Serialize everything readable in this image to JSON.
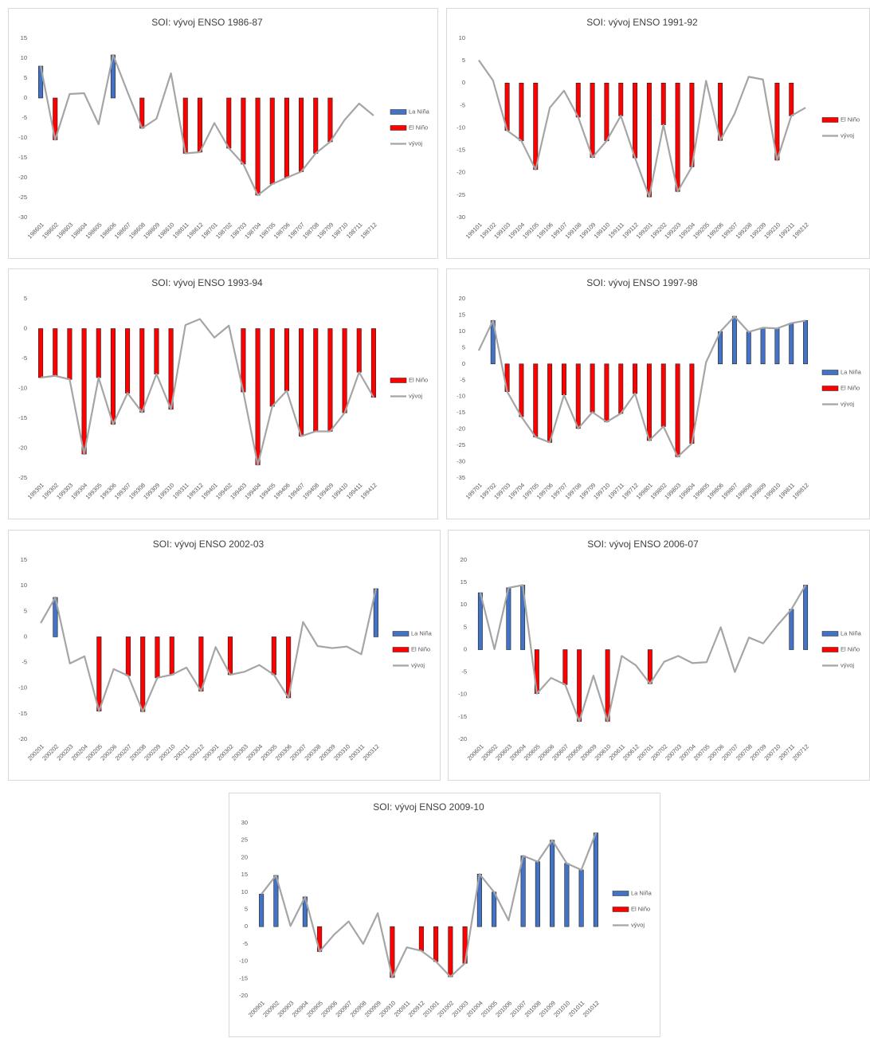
{
  "chart_data": [
    {
      "type": "bar",
      "title": "SOI: vývoj ENSO 1986-87",
      "legend": "right",
      "grid": false,
      "categories": [
        "198601",
        "198602",
        "198603",
        "198604",
        "198605",
        "198606",
        "198607",
        "198608",
        "198609",
        "198610",
        "198611",
        "198612",
        "198701",
        "198702",
        "198703",
        "198704",
        "198705",
        "198706",
        "198707",
        "198708",
        "198709",
        "198710",
        "198711",
        "198712"
      ],
      "ylim": [
        -30,
        15
      ],
      "yticks": [
        -30,
        -25,
        -20,
        -15,
        -10,
        -5,
        0,
        5,
        10,
        15
      ],
      "series": [
        {
          "name": "La Niña",
          "type": "bar",
          "color": "#4472c4",
          "values": [
            8,
            null,
            null,
            null,
            null,
            10.8,
            null,
            null,
            null,
            null,
            null,
            null,
            null,
            null,
            null,
            null,
            null,
            null,
            null,
            null,
            null,
            null,
            null,
            null
          ]
        },
        {
          "name": "El Niño",
          "type": "bar",
          "color": "#ff0000",
          "values": [
            null,
            -10.5,
            null,
            null,
            null,
            null,
            null,
            -7.6,
            null,
            null,
            -13.9,
            -13.6,
            null,
            -12.6,
            -16.6,
            -24.4,
            -21.6,
            -20,
            -18.5,
            -13.9,
            -11,
            null,
            null,
            null
          ]
        },
        {
          "name": "vývoj",
          "type": "line",
          "color": "#a5a5a5",
          "values": [
            8,
            -10.5,
            1,
            1.2,
            -6.6,
            10.8,
            1.5,
            -7.6,
            -5.2,
            6.2,
            -13.9,
            -13.6,
            -6.3,
            -12.6,
            -16.6,
            -24.4,
            -21.6,
            -20,
            -18.5,
            -13.9,
            -11,
            -5.5,
            -1.4,
            -4.4
          ]
        }
      ]
    },
    {
      "type": "bar",
      "title": "SOI: vývoj ENSO 1991-92",
      "legend": "right",
      "grid": false,
      "categories": [
        "199101",
        "199102",
        "199103",
        "199104",
        "199105",
        "199106",
        "199107",
        "199108",
        "199109",
        "199110",
        "199111",
        "199112",
        "199201",
        "199202",
        "199203",
        "199204",
        "199205",
        "199206",
        "199207",
        "199208",
        "199209",
        "199210",
        "199211",
        "199212"
      ],
      "ylim": [
        -30,
        10
      ],
      "yticks": [
        -30,
        -25,
        -20,
        -15,
        -10,
        -5,
        0,
        5,
        10
      ],
      "series": [
        {
          "name": "El Niño",
          "type": "bar",
          "color": "#ff0000",
          "values": [
            null,
            null,
            -10.6,
            -12.9,
            -19.3,
            null,
            null,
            -7.6,
            -16.6,
            -12.9,
            -7.3,
            -16.7,
            -25.4,
            -9.3,
            -24.2,
            -18.7,
            null,
            -12.8,
            null,
            null,
            null,
            -17.2,
            -7.3,
            null
          ]
        },
        {
          "name": "vývoj",
          "type": "line",
          "color": "#a5a5a5",
          "values": [
            5.1,
            0.6,
            -10.6,
            -12.9,
            -19.3,
            -5.5,
            -1.7,
            -7.6,
            -16.6,
            -12.9,
            -7.3,
            -16.7,
            -25.4,
            -9.3,
            -24.2,
            -18.7,
            0.5,
            -12.8,
            -6.9,
            1.4,
            0.8,
            -17.2,
            -7.3,
            -5.5
          ]
        }
      ]
    },
    {
      "type": "bar",
      "title": "SOI: vývoj ENSO 1993-94",
      "legend": "right",
      "grid": false,
      "categories": [
        "199301",
        "199302",
        "199303",
        "199304",
        "199305",
        "199306",
        "199307",
        "199308",
        "199309",
        "199310",
        "199311",
        "199312",
        "199401",
        "199402",
        "199403",
        "199404",
        "199405",
        "199406",
        "199407",
        "199408",
        "199409",
        "199410",
        "199411",
        "199412"
      ],
      "ylim": [
        -25,
        5
      ],
      "yticks": [
        -25,
        -20,
        -15,
        -10,
        -5,
        0,
        5
      ],
      "series": [
        {
          "name": "El Niño",
          "type": "bar",
          "color": "#ff0000",
          "values": [
            -8.2,
            -7.9,
            -8.5,
            -21,
            -8.2,
            -16,
            -10.8,
            -14,
            -7.6,
            -13.5,
            null,
            null,
            null,
            null,
            -10.6,
            -22.8,
            -13,
            -10.4,
            -18,
            -17.2,
            -17.2,
            -14.1,
            -7.3,
            -11.5
          ]
        },
        {
          "name": "vývoj",
          "type": "line",
          "color": "#a5a5a5",
          "values": [
            -8.2,
            -7.9,
            -8.5,
            -21,
            -8.2,
            -16,
            -10.8,
            -14,
            -7.6,
            -13.5,
            0.6,
            1.6,
            -1.5,
            0.5,
            -10.6,
            -22.8,
            -13,
            -10.4,
            -18,
            -17.2,
            -17.2,
            -14.1,
            -7.3,
            -11.5
          ]
        }
      ]
    },
    {
      "type": "bar",
      "title": "SOI: vývoj ENSO 1997-98",
      "legend": "right",
      "grid": false,
      "categories": [
        "199701",
        "199702",
        "199703",
        "199704",
        "199705",
        "199706",
        "199707",
        "199708",
        "199709",
        "199710",
        "199711",
        "199712",
        "199801",
        "199802",
        "199803",
        "199804",
        "199805",
        "199806",
        "199807",
        "199808",
        "199809",
        "199810",
        "199811",
        "199812"
      ],
      "ylim": [
        -35,
        20
      ],
      "yticks": [
        -35,
        -30,
        -25,
        -20,
        -15,
        -10,
        -5,
        0,
        5,
        10,
        15,
        20
      ],
      "series": [
        {
          "name": "La Niña",
          "type": "bar",
          "color": "#4472c4",
          "values": [
            null,
            13.3,
            null,
            null,
            null,
            null,
            null,
            null,
            null,
            null,
            null,
            null,
            null,
            null,
            null,
            null,
            null,
            9.9,
            14.6,
            9.8,
            11.1,
            10.9,
            12.5,
            13.3
          ]
        },
        {
          "name": "El Niño",
          "type": "bar",
          "color": "#ff0000",
          "values": [
            null,
            null,
            -8.5,
            -16.2,
            -22.4,
            -24.1,
            -9.5,
            -19.8,
            -14.8,
            -17.8,
            -15.2,
            -9.1,
            -23.5,
            -19.2,
            -28.5,
            -24.4,
            null,
            null,
            null,
            null,
            null,
            null,
            null,
            null
          ]
        },
        {
          "name": "vývoj",
          "type": "line",
          "color": "#a5a5a5",
          "values": [
            4.1,
            13.3,
            -8.5,
            -16.2,
            -22.4,
            -24.1,
            -9.5,
            -19.8,
            -14.8,
            -17.8,
            -15.2,
            -9.1,
            -23.5,
            -19.2,
            -28.5,
            -24.4,
            0.5,
            9.9,
            14.6,
            9.8,
            11.1,
            10.9,
            12.5,
            13.3
          ]
        }
      ]
    },
    {
      "type": "bar",
      "title": "SOI: vývoj ENSO 2002-03",
      "legend": "right",
      "grid": false,
      "categories": [
        "200201",
        "200202",
        "200203",
        "200204",
        "200205",
        "200206",
        "200207",
        "200208",
        "200209",
        "200210",
        "200211",
        "200212",
        "200301",
        "200302",
        "200303",
        "200304",
        "200305",
        "200306",
        "200307",
        "200308",
        "200309",
        "200310",
        "200311",
        "200312"
      ],
      "ylim": [
        -20,
        15
      ],
      "yticks": [
        -20,
        -15,
        -10,
        -5,
        0,
        5,
        10,
        15
      ],
      "series": [
        {
          "name": "La Niña",
          "type": "bar",
          "color": "#4472c4",
          "values": [
            null,
            7.7,
            null,
            null,
            null,
            null,
            null,
            null,
            null,
            null,
            null,
            null,
            null,
            null,
            null,
            null,
            null,
            null,
            null,
            null,
            null,
            null,
            null,
            9.4
          ]
        },
        {
          "name": "El Niño",
          "type": "bar",
          "color": "#ff0000",
          "values": [
            null,
            null,
            null,
            null,
            -14.5,
            null,
            -7.6,
            -14.6,
            -8,
            -7.4,
            null,
            -10.6,
            null,
            -7.4,
            null,
            null,
            -7.4,
            -11.9,
            null,
            null,
            null,
            null,
            null,
            null
          ]
        },
        {
          "name": "vývoj",
          "type": "line",
          "color": "#a5a5a5",
          "values": [
            2.7,
            7.7,
            -5.2,
            -3.8,
            -14.5,
            -6.3,
            -7.6,
            -14.6,
            -8,
            -7.4,
            -6,
            -10.6,
            -2,
            -7.4,
            -6.8,
            -5.5,
            -7.4,
            -11.9,
            2.9,
            -1.8,
            -2.2,
            -1.9,
            -3.4,
            9.4
          ]
        }
      ]
    },
    {
      "type": "bar",
      "title": "SOI: vývoj ENSO 2006-07",
      "legend": "right",
      "grid": false,
      "categories": [
        "200601",
        "200602",
        "200603",
        "200604",
        "200605",
        "200606",
        "200607",
        "200608",
        "200609",
        "200610",
        "200611",
        "200612",
        "200701",
        "200702",
        "200703",
        "200704",
        "200705",
        "200706",
        "200707",
        "200708",
        "200709",
        "200710",
        "200711",
        "200712"
      ],
      "ylim": [
        -20,
        20
      ],
      "yticks": [
        -20,
        -15,
        -10,
        -5,
        0,
        5,
        10,
        15,
        20
      ],
      "series": [
        {
          "name": "La Niña",
          "type": "bar",
          "color": "#4472c4",
          "values": [
            12.7,
            null,
            13.8,
            14.4,
            null,
            null,
            null,
            null,
            null,
            null,
            null,
            null,
            null,
            null,
            null,
            null,
            null,
            null,
            null,
            null,
            null,
            null,
            9,
            14.4
          ]
        },
        {
          "name": "El Niño",
          "type": "bar",
          "color": "#ff0000",
          "values": [
            null,
            null,
            null,
            null,
            -9.8,
            null,
            -7.8,
            -16,
            null,
            -16,
            null,
            null,
            -7.6,
            null,
            null,
            null,
            null,
            null,
            null,
            null,
            null,
            null,
            null,
            null
          ]
        },
        {
          "name": "vývoj",
          "type": "line",
          "color": "#a5a5a5",
          "values": [
            12.7,
            0.1,
            13.8,
            14.4,
            -9.8,
            -6.3,
            -7.8,
            -16,
            -5.8,
            -16,
            -1.4,
            -3.5,
            -7.6,
            -2.7,
            -1.4,
            -3,
            -2.8,
            5,
            -5,
            2.7,
            1.4,
            5.4,
            9,
            14.4
          ]
        }
      ]
    },
    {
      "type": "bar",
      "title": "SOI: vývoj ENSO 2009-10",
      "legend": "right",
      "grid": false,
      "categories": [
        "200901",
        "200902",
        "200903",
        "200904",
        "200905",
        "200906",
        "200907",
        "200908",
        "200909",
        "200910",
        "200911",
        "200912",
        "201001",
        "201002",
        "201003",
        "201004",
        "201005",
        "201006",
        "201007",
        "201008",
        "201009",
        "201010",
        "201011",
        "201012"
      ],
      "ylim": [
        -20,
        30
      ],
      "yticks": [
        -20,
        -15,
        -10,
        -5,
        0,
        5,
        10,
        15,
        20,
        25,
        30
      ],
      "series": [
        {
          "name": "La Niña",
          "type": "bar",
          "color": "#4472c4",
          "values": [
            9.4,
            14.8,
            null,
            8.6,
            null,
            null,
            null,
            null,
            null,
            null,
            null,
            null,
            null,
            null,
            null,
            15.2,
            10,
            null,
            20.5,
            18.8,
            25,
            18.3,
            16.4,
            27.1
          ]
        },
        {
          "name": "El Niño",
          "type": "bar",
          "color": "#ff0000",
          "values": [
            null,
            null,
            null,
            null,
            -7.2,
            null,
            null,
            null,
            null,
            -14.7,
            null,
            -7,
            -10.1,
            -14.5,
            -10.6,
            null,
            null,
            null,
            null,
            null,
            null,
            null,
            null,
            null
          ]
        },
        {
          "name": "vývoj",
          "type": "line",
          "color": "#a5a5a5",
          "values": [
            9.4,
            14.8,
            0.2,
            8.6,
            -7.2,
            -2.3,
            1.5,
            -5,
            3.9,
            -14.7,
            -6,
            -7,
            -10.1,
            -14.5,
            -10.6,
            15.2,
            10,
            1.8,
            20.5,
            18.8,
            25,
            18.3,
            16.4,
            27.1
          ]
        }
      ]
    }
  ]
}
